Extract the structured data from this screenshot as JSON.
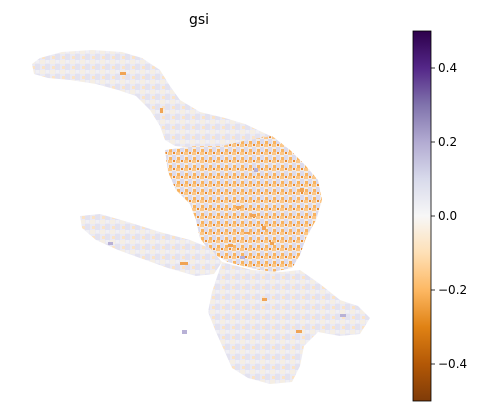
{
  "title": "gsi",
  "colorbar": {
    "cmap": "PuOr",
    "range": [
      -0.5,
      0.5
    ],
    "ticks": [
      {
        "value": 0.4,
        "label": "0.4"
      },
      {
        "value": 0.2,
        "label": "0.2"
      },
      {
        "value": 0.0,
        "label": "0.0"
      },
      {
        "value": -0.2,
        "label": "−0.2"
      },
      {
        "value": -0.4,
        "label": "−0.4"
      }
    ],
    "stops": [
      "#2d004b",
      "#542788",
      "#8073ac",
      "#b2abd2",
      "#d8daeb",
      "#f7f7f7",
      "#fee0b6",
      "#fdb863",
      "#e08214",
      "#b35806",
      "#7f3b08"
    ]
  }
}
